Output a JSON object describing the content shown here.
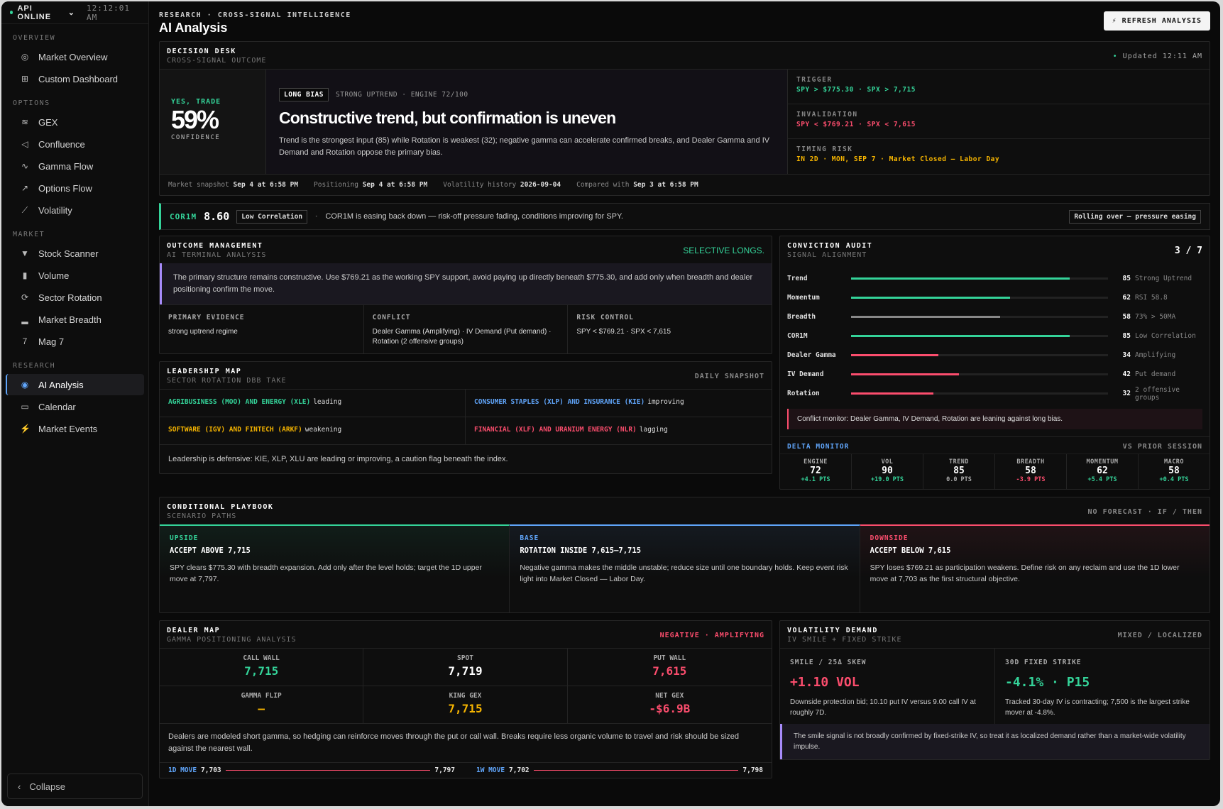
{
  "status": {
    "api": "API ONLINE",
    "time": "12:12:01 AM"
  },
  "sidebar": {
    "sections": [
      {
        "title": "OVERVIEW",
        "items": [
          "Market Overview",
          "Custom Dashboard"
        ]
      },
      {
        "title": "OPTIONS",
        "items": [
          "GEX",
          "Confluence",
          "Gamma Flow",
          "Options Flow",
          "Volatility"
        ]
      },
      {
        "title": "MARKET",
        "items": [
          "Stock Scanner",
          "Volume",
          "Sector Rotation",
          "Market Breadth",
          "Mag 7"
        ]
      },
      {
        "title": "RESEARCH",
        "items": [
          "AI Analysis",
          "Calendar",
          "Market Events"
        ]
      }
    ],
    "collapse": "Collapse"
  },
  "header": {
    "crumb": "RESEARCH · CROSS-SIGNAL INTELLIGENCE",
    "title": "AI Analysis",
    "refresh": "REFRESH ANALYSIS"
  },
  "decision": {
    "title": "DECISION DESK",
    "subtitle": "CROSS-SIGNAL OUTCOME",
    "updated": "Updated 12:11 AM",
    "verdict": "YES, TRADE",
    "confidence": "59%",
    "confidence_label": "CONFIDENCE",
    "bias": "LONG BIAS",
    "bias_sub": "STRONG UPTREND · ENGINE 72/100",
    "headline": "Constructive trend, but confirmation is uneven",
    "desc": "Trend is the strongest input (85) while Rotation is weakest (32); negative gamma can accelerate confirmed breaks, and Dealer Gamma and IV Demand and Rotation oppose the primary bias.",
    "trigger_label": "TRIGGER",
    "trigger": "SPY > $775.30 · SPX > 7,715",
    "invalidation_label": "INVALIDATION",
    "invalidation": "SPY < $769.21 · SPX < 7,615",
    "timing_label": "TIMING RISK",
    "timing": "IN 2D · MON, SEP 7 · Market Closed — Labor Day",
    "snap": [
      {
        "k": "Market snapshot",
        "v": "Sep 4 at 6:58 PM"
      },
      {
        "k": "Positioning",
        "v": "Sep 4 at 6:58 PM"
      },
      {
        "k": "Volatility history",
        "v": "2026-09-04"
      },
      {
        "k": "Compared with",
        "v": "Sep 3 at 6:58 PM"
      }
    ]
  },
  "cor": {
    "label": "COR1M",
    "value": "8.60",
    "badge": "Low Correlation",
    "text": "COR1M is easing back down — risk-off pressure fading, conditions improving for SPY.",
    "right": "Rolling over — pressure easing"
  },
  "outcome": {
    "title": "OUTCOME MANAGEMENT",
    "subtitle": "AI TERMINAL ANALYSIS",
    "right": "SELECTIVE LONGS.",
    "quote": "The primary structure remains constructive. Use $769.21 as the working SPY support, avoid paying up directly beneath $775.30, and add only when breadth and dealer positioning confirm the move.",
    "ev": [
      {
        "l": "PRIMARY EVIDENCE",
        "v": "strong uptrend regime"
      },
      {
        "l": "CONFLICT",
        "v": "Dealer Gamma (Amplifying) · IV Demand (Put demand) · Rotation (2 offensive groups)"
      },
      {
        "l": "RISK CONTROL",
        "v": "SPY < $769.21 · SPX < 7,615"
      }
    ]
  },
  "leadership": {
    "title": "LEADERSHIP MAP",
    "subtitle": "SECTOR ROTATION DBB TAKE",
    "right": "DAILY SNAPSHOT",
    "cells": [
      {
        "t": "AGRIBUSINESS (MOO) AND ENERGY (XLE)",
        "s": "leading",
        "c": "#34d399"
      },
      {
        "t": "CONSUMER STAPLES (XLP) AND INSURANCE (KIE)",
        "s": "improving",
        "c": "#60a5fa"
      },
      {
        "t": "SOFTWARE (IGV) AND FINTECH (ARKF)",
        "s": "weakening",
        "c": "#f5b400"
      },
      {
        "t": "FINANCIAL (XLF) AND URANIUM ENERGY (NLR)",
        "s": "lagging",
        "c": "#fb4d6d"
      }
    ],
    "note": "Leadership is defensive: KIE, XLP, XLU are leading or improving, a caution flag beneath the index."
  },
  "audit": {
    "title": "CONVICTION AUDIT",
    "subtitle": "SIGNAL ALIGNMENT",
    "score": "3 / 7",
    "rows": [
      {
        "l": "Trend",
        "v": 85,
        "n": "Strong Uptrend",
        "c": "#34d399"
      },
      {
        "l": "Momentum",
        "v": 62,
        "n": "RSI 58.8",
        "c": "#34d399"
      },
      {
        "l": "Breadth",
        "v": 58,
        "n": "73% > 50MA",
        "c": "#888888"
      },
      {
        "l": "COR1M",
        "v": 85,
        "n": "Low Correlation",
        "c": "#34d399"
      },
      {
        "l": "Dealer Gamma",
        "v": 34,
        "n": "Amplifying",
        "c": "#fb4d6d"
      },
      {
        "l": "IV Demand",
        "v": 42,
        "n": "Put demand",
        "c": "#fb4d6d"
      },
      {
        "l": "Rotation",
        "v": 32,
        "n": "2 offensive groups",
        "c": "#fb4d6d"
      }
    ],
    "conflict": "Conflict monitor: Dealer Gamma, IV Demand, Rotation are leaning against long bias."
  },
  "delta": {
    "title": "DELTA MONITOR",
    "right": "VS PRIOR SESSION",
    "cells": [
      {
        "l": "ENGINE",
        "v": "72",
        "c": "+4.1 PTS",
        "col": "#34d399"
      },
      {
        "l": "VOL",
        "v": "90",
        "c": "+19.0 PTS",
        "col": "#34d399"
      },
      {
        "l": "TREND",
        "v": "85",
        "c": "0.0 PTS",
        "col": "#aaaaaa"
      },
      {
        "l": "BREADTH",
        "v": "58",
        "c": "-3.9 PTS",
        "col": "#fb4d6d"
      },
      {
        "l": "MOMENTUM",
        "v": "62",
        "c": "+5.4 PTS",
        "col": "#34d399"
      },
      {
        "l": "MACRO",
        "v": "58",
        "c": "+0.4 PTS",
        "col": "#34d399"
      }
    ]
  },
  "playbook": {
    "title": "CONDITIONAL PLAYBOOK",
    "subtitle": "SCENARIO PATHS",
    "right": "NO FORECAST · IF / THEN",
    "cols": [
      {
        "l": "UPSIDE",
        "h": "ACCEPT ABOVE 7,715",
        "t": "SPY clears $775.30 with breadth expansion. Add only after the level holds; target the 1D upper move at 7,797.",
        "c": "#34d399"
      },
      {
        "l": "BASE",
        "h": "ROTATION INSIDE 7,615–7,715",
        "t": "Negative gamma makes the middle unstable; reduce size until one boundary holds. Keep event risk light into Market Closed — Labor Day.",
        "c": "#60a5fa"
      },
      {
        "l": "DOWNSIDE",
        "h": "ACCEPT BELOW 7,615",
        "t": "SPY loses $769.21 as participation weakens. Define risk on any reclaim and use the 1D lower move at 7,703 as the first structural objective.",
        "c": "#fb4d6d"
      }
    ]
  },
  "dealer": {
    "title": "DEALER MAP",
    "subtitle": "GAMMA POSITIONING ANALYSIS",
    "right": "NEGATIVE · AMPLIFYING",
    "cells": [
      {
        "l": "CALL WALL",
        "v": "7,715",
        "c": "#34d399"
      },
      {
        "l": "SPOT",
        "v": "7,719",
        "c": "#ffffff"
      },
      {
        "l": "PUT WALL",
        "v": "7,615",
        "c": "#fb4d6d"
      },
      {
        "l": "GAMMA FLIP",
        "v": "—",
        "c": "#f5b400"
      },
      {
        "l": "KING GEX",
        "v": "7,715",
        "c": "#f5b400"
      },
      {
        "l": "NET GEX",
        "v": "-$6.9B",
        "c": "#fb4d6d"
      }
    ],
    "note": "Dealers are modeled short gamma, so hedging can reinforce moves through the put or call wall. Breaks require less organic volume to travel and risk should be sized against the nearest wall.",
    "moves": [
      {
        "l": "1D MOVE",
        "lo": "7,703",
        "hi": "7,797"
      },
      {
        "l": "1W MOVE",
        "lo": "7,702",
        "hi": "7,798"
      }
    ]
  },
  "vol": {
    "title": "VOLATILITY DEMAND",
    "subtitle": "IV SMILE + FIXED STRIKE",
    "right": "MIXED / LOCALIZED",
    "cols": [
      {
        "l": "SMILE / 25Δ SKEW",
        "v": "+1.10 VOL",
        "t": "Downside protection bid; 10.10 put IV versus 9.00 call IV at roughly 7D.",
        "c": "#fb4d6d"
      },
      {
        "l": "30D FIXED STRIKE",
        "v": "-4.1% · P15",
        "t": "Tracked 30-day IV is contracting; 7,500 is the largest strike mover at -4.8%.",
        "c": "#34d399"
      }
    ],
    "note": "The smile signal is not broadly confirmed by fixed-strike IV, so treat it as localized demand rather than a market-wide volatility impulse."
  }
}
